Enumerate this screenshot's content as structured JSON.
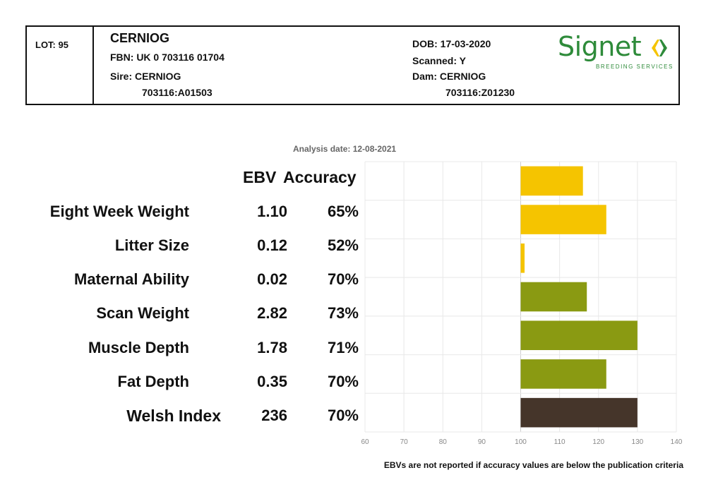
{
  "header": {
    "lot": "LOT: 95",
    "animal_name": "CERNIOG",
    "fbn": "FBN: UK 0 703116 01704",
    "sire": "Sire: CERNIOG",
    "sire_id": "703116:A01503",
    "dob": "DOB: 17-03-2020",
    "scanned": "Scanned: Y",
    "dam": "Dam: CERNIOG",
    "dam_id": "703116:Z01230"
  },
  "logo": {
    "word": "Signet",
    "subtitle": "BREEDING SERVICES",
    "color": "#2e8b3a"
  },
  "analysis_date": "Analysis date: 12-08-2021",
  "columns": {
    "ebv": "EBV",
    "accuracy": "Accuracy"
  },
  "traits": [
    {
      "label": "Eight Week Weight",
      "ebv": "1.10",
      "accuracy": "65%"
    },
    {
      "label": "Litter Size",
      "ebv": "0.12",
      "accuracy": "52%"
    },
    {
      "label": "Maternal Ability",
      "ebv": "0.02",
      "accuracy": "70%"
    },
    {
      "label": "Scan Weight",
      "ebv": "2.82",
      "accuracy": "73%"
    },
    {
      "label": "Muscle Depth",
      "ebv": "1.78",
      "accuracy": "71%"
    },
    {
      "label": "Fat Depth",
      "ebv": "0.35",
      "accuracy": "70%"
    },
    {
      "label": "Welsh Index",
      "ebv": "236",
      "accuracy": "70%"
    }
  ],
  "chart_data": {
    "type": "bar",
    "orientation": "horizontal",
    "categories": [
      "Eight Week Weight",
      "Litter Size",
      "Maternal Ability",
      "Scan Weight",
      "Muscle Depth",
      "Fat Depth",
      "Welsh Index"
    ],
    "values": [
      116,
      122,
      101,
      117,
      130,
      122,
      130
    ],
    "baseline": 100,
    "colors": [
      "#f5c400",
      "#f5c400",
      "#f5c400",
      "#8a9a12",
      "#8a9a12",
      "#8a9a12",
      "#45352a"
    ],
    "xlim": [
      60,
      140
    ],
    "xticks": [
      "60",
      "70",
      "80",
      "90",
      "100",
      "110",
      "120",
      "130",
      "140"
    ],
    "grid": true
  },
  "footnote": "EBVs are not reported if accuracy values are below the publication criteria"
}
